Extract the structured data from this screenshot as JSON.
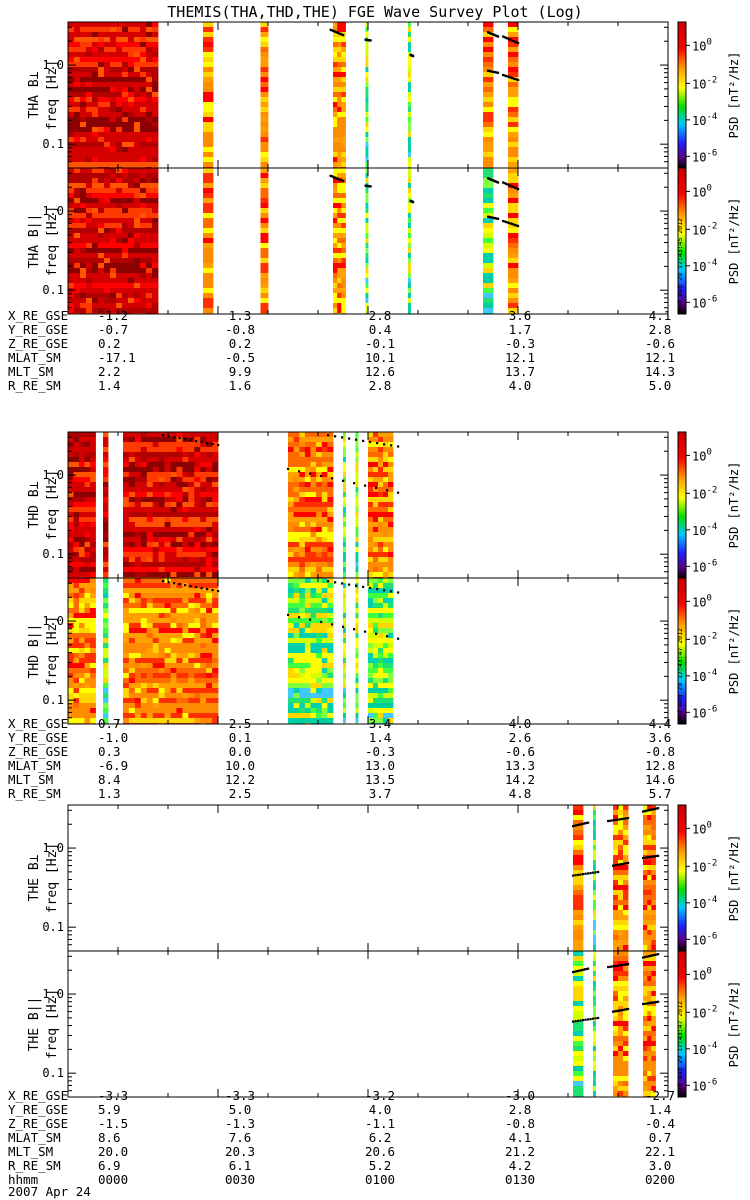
{
  "title": "THEMIS(THA,THD,THE) FGE Wave Survey Plot (Log)",
  "colorbar": {
    "label": "PSD [nT²/Hz]",
    "ticks": [
      {
        "base": "10",
        "exp": "0"
      },
      {
        "base": "10",
        "exp": "-2"
      },
      {
        "base": "10",
        "exp": "-4"
      },
      {
        "base": "10",
        "exp": "-6"
      }
    ]
  },
  "y_tick_labels": [
    "1.0",
    "0.1"
  ],
  "ylabel": "freq [Hz]",
  "stamps": [
    "Wed Aug 29 17:43:45 2012",
    "Wed Aug 29 17:43:47 2012",
    "Wed Aug 29 17:43:47 2012"
  ],
  "chart_data": [
    {
      "type": "heatmap",
      "probe": "THA",
      "panels": [
        {
          "label": "THA B⊥",
          "bands": [
            {
              "x0": 0.0,
              "x1": 18.0,
              "level": "dense"
            },
            {
              "x0": 27.0,
              "x1": 29.0,
              "level": "mid"
            },
            {
              "x0": 38.5,
              "x1": 40.0,
              "level": "mid"
            },
            {
              "x0": 53.0,
              "x1": 55.5,
              "level": "mid"
            },
            {
              "x0": 59.5,
              "x1": 60.0,
              "level": "low"
            },
            {
              "x0": 68.0,
              "x1": 68.5,
              "level": "low"
            },
            {
              "x0": 83.0,
              "x1": 85.0,
              "level": "mid"
            },
            {
              "x0": 88.0,
              "x1": 90.0,
              "level": "mid"
            }
          ],
          "ridges": [
            {
              "x": [
                52.5,
                55.0
              ],
              "f": [
                2.8,
                2.4
              ]
            },
            {
              "x": [
                59.5,
                60.5
              ],
              "f": [
                2.1,
                2.05
              ]
            },
            {
              "x": [
                68.5,
                69.0
              ],
              "f": [
                1.35,
                1.3
              ]
            },
            {
              "x": [
                84.0,
                86.0
              ],
              "f": [
                2.6,
                2.3
              ]
            },
            {
              "x": [
                87.0,
                90.0
              ],
              "f": [
                2.3,
                1.9
              ]
            },
            {
              "x": [
                84.0,
                86.0
              ],
              "f": [
                0.85,
                0.8
              ]
            },
            {
              "x": [
                87.0,
                90.0
              ],
              "f": [
                0.75,
                0.65
              ]
            }
          ]
        },
        {
          "label": "THA B||",
          "bands": [
            {
              "x0": 0.0,
              "x1": 18.0,
              "level": "dense"
            },
            {
              "x0": 27.0,
              "x1": 29.0,
              "level": "mid"
            },
            {
              "x0": 38.5,
              "x1": 40.0,
              "level": "mid"
            },
            {
              "x0": 53.0,
              "x1": 55.5,
              "level": "mid"
            },
            {
              "x0": 59.5,
              "x1": 60.0,
              "level": "low"
            },
            {
              "x0": 68.0,
              "x1": 68.5,
              "level": "low"
            },
            {
              "x0": 83.0,
              "x1": 85.0,
              "level": "low"
            },
            {
              "x0": 88.0,
              "x1": 90.0,
              "level": "mid"
            }
          ],
          "ridges": [
            {
              "x": [
                52.5,
                55.0
              ],
              "f": [
                2.8,
                2.4
              ]
            },
            {
              "x": [
                59.5,
                60.5
              ],
              "f": [
                2.1,
                2.05
              ]
            },
            {
              "x": [
                68.5,
                69.0
              ],
              "f": [
                1.35,
                1.3
              ]
            },
            {
              "x": [
                84.0,
                86.0
              ],
              "f": [
                2.6,
                2.3
              ]
            },
            {
              "x": [
                87.0,
                90.0
              ],
              "f": [
                2.3,
                1.9
              ]
            },
            {
              "x": [
                84.0,
                86.0
              ],
              "f": [
                0.85,
                0.8
              ]
            },
            {
              "x": [
                87.0,
                90.0
              ],
              "f": [
                0.75,
                0.65
              ]
            }
          ]
        }
      ],
      "ephemeris": [
        {
          "name": "X_RE_GSE",
          "values": [
            "-1.2",
            "1.3",
            "2.8",
            "3.6",
            "4.1"
          ]
        },
        {
          "name": "Y_RE_GSE",
          "values": [
            "-0.7",
            "-0.8",
            "0.4",
            "1.7",
            "2.8"
          ]
        },
        {
          "name": "Z_RE_GSE",
          "values": [
            "0.2",
            "0.2",
            "-0.1",
            "-0.3",
            "-0.6"
          ]
        },
        {
          "name": "MLAT_SM",
          "values": [
            "-17.1",
            "-0.5",
            "10.1",
            "12.1",
            "12.1"
          ]
        },
        {
          "name": "MLT_SM",
          "values": [
            "2.2",
            "9.9",
            "12.6",
            "13.7",
            "14.3"
          ]
        },
        {
          "name": "R_RE_SM",
          "values": [
            "1.4",
            "1.6",
            "2.8",
            "4.0",
            "5.0"
          ]
        }
      ]
    },
    {
      "type": "heatmap",
      "probe": "THD",
      "panels": [
        {
          "label": "THD B⊥",
          "bands": [
            {
              "x0": 0.0,
              "x1": 5.5,
              "level": "dense"
            },
            {
              "x0": 7.0,
              "x1": 8.0,
              "level": "dense"
            },
            {
              "x0": 11.0,
              "x1": 30.0,
              "level": "dense"
            },
            {
              "x0": 44.0,
              "x1": 53.0,
              "level": "mid"
            },
            {
              "x0": 55.0,
              "x1": 55.5,
              "level": "low"
            },
            {
              "x0": 57.5,
              "x1": 58.0,
              "level": "low"
            },
            {
              "x0": 60.0,
              "x1": 65.0,
              "level": "mid"
            }
          ],
          "ridges": [
            {
              "x": [
                19.0,
                30.0
              ],
              "f": [
                3.2,
                2.4
              ]
            },
            {
              "x": [
                44.0,
                66.0
              ],
              "f": [
                1.2,
                0.6
              ]
            },
            {
              "x": [
                52.0,
                66.0
              ],
              "f": [
                3.2,
                2.3
              ]
            }
          ]
        },
        {
          "label": "THD B||",
          "bands": [
            {
              "x0": 0.0,
              "x1": 5.5,
              "level": "mid"
            },
            {
              "x0": 7.0,
              "x1": 8.0,
              "level": "low"
            },
            {
              "x0": 11.0,
              "x1": 30.0,
              "level": "mid"
            },
            {
              "x0": 44.0,
              "x1": 53.0,
              "level": "low"
            },
            {
              "x0": 55.0,
              "x1": 55.5,
              "level": "low"
            },
            {
              "x0": 57.5,
              "x1": 58.0,
              "level": "low"
            },
            {
              "x0": 60.0,
              "x1": 65.0,
              "level": "low"
            }
          ],
          "ridges": [
            {
              "x": [
                19.0,
                30.0
              ],
              "f": [
                3.2,
                2.4
              ]
            },
            {
              "x": [
                44.0,
                66.0
              ],
              "f": [
                1.2,
                0.6
              ]
            },
            {
              "x": [
                52.0,
                66.0
              ],
              "f": [
                3.2,
                2.3
              ]
            }
          ]
        }
      ],
      "ephemeris": [
        {
          "name": "X_RE_GSE",
          "values": [
            "0.7",
            "2.5",
            "3.4",
            "4.0",
            "4.4"
          ]
        },
        {
          "name": "Y_RE_GSE",
          "values": [
            "-1.0",
            "0.1",
            "1.4",
            "2.6",
            "3.6"
          ]
        },
        {
          "name": "Z_RE_GSE",
          "values": [
            "0.3",
            "0.0",
            "-0.3",
            "-0.6",
            "-0.8"
          ]
        },
        {
          "name": "MLAT_SM",
          "values": [
            "-6.9",
            "10.0",
            "13.0",
            "13.3",
            "12.8"
          ]
        },
        {
          "name": "MLT_SM",
          "values": [
            "8.4",
            "12.2",
            "13.5",
            "14.2",
            "14.6"
          ]
        },
        {
          "name": "R_RE_SM",
          "values": [
            "1.3",
            "2.5",
            "3.7",
            "4.8",
            "5.7"
          ]
        }
      ]
    },
    {
      "type": "heatmap",
      "probe": "THE",
      "panels": [
        {
          "label": "THE B⊥",
          "bands": [
            {
              "x0": 101.0,
              "x1": 103.0,
              "level": "mid"
            },
            {
              "x0": 105.0,
              "x1": 105.5,
              "level": "low"
            },
            {
              "x0": 109.0,
              "x1": 112.0,
              "level": "mid"
            },
            {
              "x0": 115.0,
              "x1": 117.5,
              "level": "mid"
            }
          ],
          "ridges": [
            {
              "x": [
                101.0,
                104.0
              ],
              "f": [
                1.9,
                2.1
              ]
            },
            {
              "x": [
                108.0,
                112.0
              ],
              "f": [
                2.2,
                2.4
              ]
            },
            {
              "x": [
                115.0,
                118.0
              ],
              "f": [
                2.9,
                3.2
              ]
            },
            {
              "x": [
                101.0,
                106.0
              ],
              "f": [
                0.45,
                0.5
              ]
            },
            {
              "x": [
                109.0,
                112.0
              ],
              "f": [
                0.6,
                0.65
              ]
            },
            {
              "x": [
                115.0,
                118.0
              ],
              "f": [
                0.75,
                0.8
              ]
            }
          ]
        },
        {
          "label": "THE B||",
          "bands": [
            {
              "x0": 101.0,
              "x1": 103.0,
              "level": "low"
            },
            {
              "x0": 105.0,
              "x1": 105.5,
              "level": "low"
            },
            {
              "x0": 109.0,
              "x1": 112.0,
              "level": "mid"
            },
            {
              "x0": 115.0,
              "x1": 117.5,
              "level": "mid"
            }
          ],
          "ridges": [
            {
              "x": [
                101.0,
                104.0
              ],
              "f": [
                1.9,
                2.1
              ]
            },
            {
              "x": [
                108.0,
                112.0
              ],
              "f": [
                2.2,
                2.4
              ]
            },
            {
              "x": [
                115.0,
                118.0
              ],
              "f": [
                2.9,
                3.2
              ]
            },
            {
              "x": [
                101.0,
                106.0
              ],
              "f": [
                0.45,
                0.5
              ]
            },
            {
              "x": [
                109.0,
                112.0
              ],
              "f": [
                0.6,
                0.65
              ]
            },
            {
              "x": [
                115.0,
                118.0
              ],
              "f": [
                0.75,
                0.8
              ]
            }
          ]
        }
      ],
      "ephemeris": [
        {
          "name": "X_RE_GSE",
          "values": [
            "-3.3",
            "-3.3",
            "-3.2",
            "-3.0",
            "-2.7"
          ]
        },
        {
          "name": "Y_RE_GSE",
          "values": [
            "5.9",
            "5.0",
            "4.0",
            "2.8",
            "1.4"
          ]
        },
        {
          "name": "Z_RE_GSE",
          "values": [
            "-1.5",
            "-1.3",
            "-1.1",
            "-0.8",
            "-0.4"
          ]
        },
        {
          "name": "MLAT_SM",
          "values": [
            "8.6",
            "7.6",
            "6.2",
            "4.1",
            "0.7"
          ]
        },
        {
          "name": "MLT_SM",
          "values": [
            "20.0",
            "20.3",
            "20.6",
            "21.2",
            "22.1"
          ]
        },
        {
          "name": "R_RE_SM",
          "values": [
            "6.9",
            "6.1",
            "5.2",
            "4.2",
            "3.0"
          ]
        },
        {
          "name": "hhmm",
          "values": [
            "0000",
            "0030",
            "0100",
            "0130",
            "0200"
          ]
        }
      ]
    }
  ],
  "x_axis": {
    "unit": "minutes",
    "range": [
      0,
      120
    ]
  },
  "date_label": "2007 Apr 24",
  "colors": {
    "dense": [
      "#8b0000",
      "#b00000",
      "#d40000",
      "#ff0000",
      "#ff3a00",
      "#ff5500",
      "#d40000"
    ],
    "mid": [
      "#ff0000",
      "#ff6a00",
      "#ffa000",
      "#ffd700",
      "#ffff00",
      "#ff3000",
      "#ff8c00"
    ],
    "low": [
      "#ffff00",
      "#d4ff00",
      "#80ff40",
      "#20e070",
      "#40ff40",
      "#ffd700",
      "#00d0b0"
    ],
    "ridge": "#000000"
  }
}
